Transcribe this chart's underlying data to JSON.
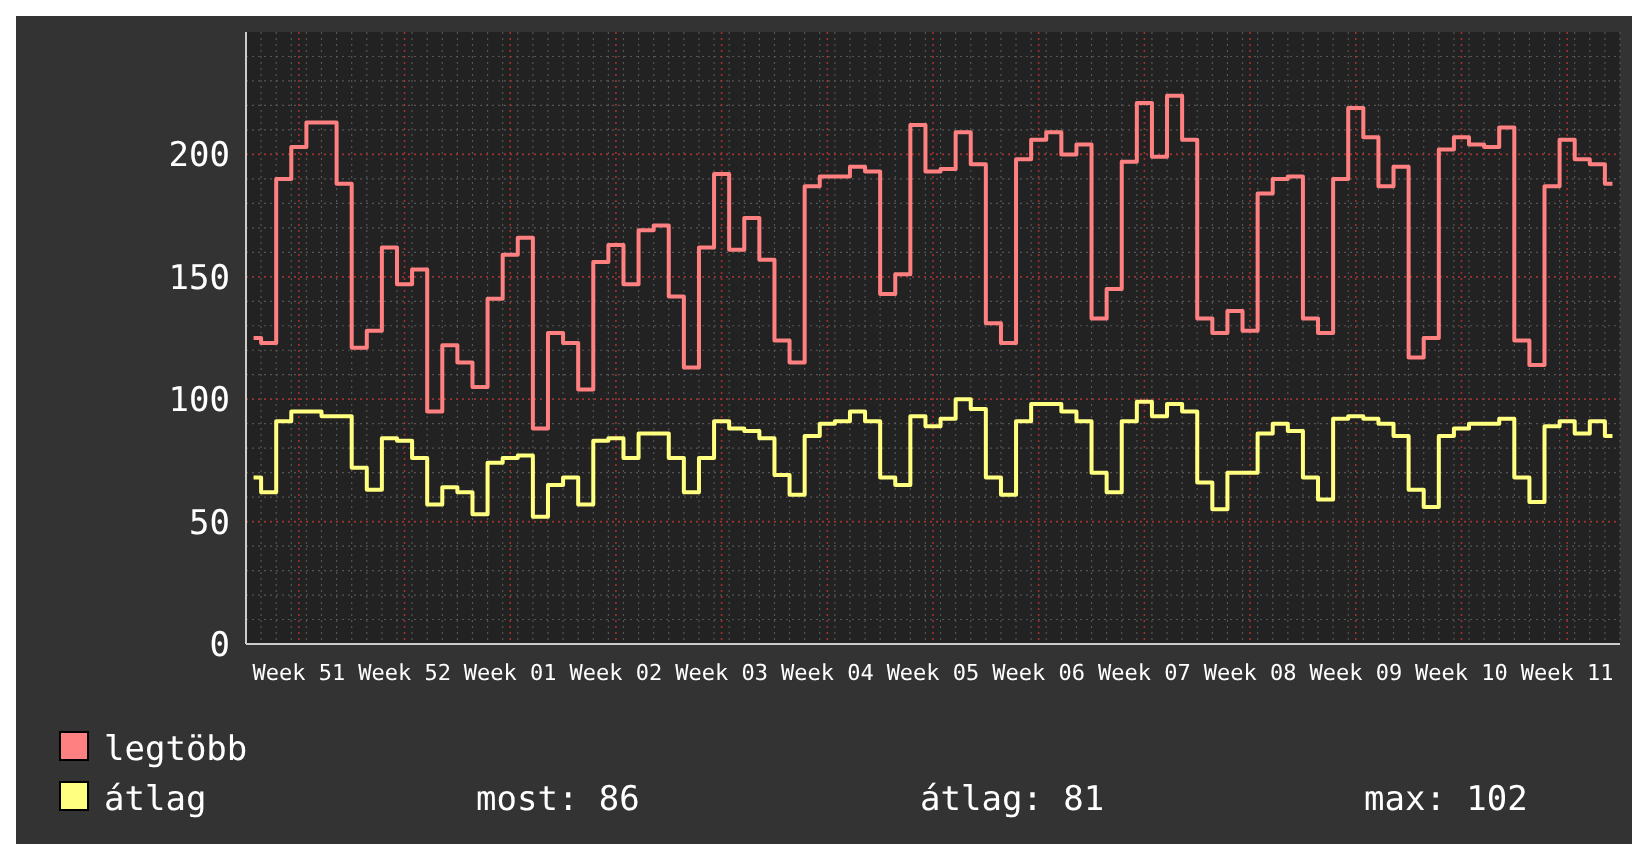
{
  "chart_data": {
    "type": "step",
    "categories": [
      null,
      null,
      null,
      "Week 51",
      null,
      null,
      null,
      null,
      null,
      null,
      "Week 52",
      null,
      null,
      null,
      null,
      null,
      null,
      "Week 01",
      null,
      null,
      null,
      null,
      null,
      null,
      "Week 02",
      null,
      null,
      null,
      null,
      null,
      null,
      "Week 03",
      null,
      null,
      null,
      null,
      null,
      null,
      "Week 04",
      null,
      null,
      null,
      null,
      null,
      null,
      "Week 05",
      null,
      null,
      null,
      null,
      null,
      null,
      "Week 06",
      null,
      null,
      null,
      null,
      null,
      null,
      "Week 07",
      null,
      null,
      null,
      null,
      null,
      null,
      "Week 08",
      null,
      null,
      null,
      null,
      null,
      null,
      "Week 09",
      null,
      null,
      null,
      null,
      null,
      null,
      "Week 10",
      null,
      null,
      null,
      null,
      null,
      null,
      "Week 11",
      null,
      null,
      null
    ],
    "series": [
      {
        "name": "legtöbb",
        "color": "#ff8080",
        "values": [
          125,
          123,
          190,
          203,
          213,
          213,
          188,
          121,
          128,
          162,
          147,
          153,
          95,
          122,
          115,
          105,
          141,
          159,
          166,
          88,
          127,
          123,
          104,
          156,
          163,
          147,
          169,
          171,
          142,
          113,
          162,
          192,
          161,
          174,
          157,
          124,
          115,
          187,
          191,
          191,
          195,
          193,
          143,
          151,
          212,
          193,
          194,
          209,
          196,
          131,
          123,
          198,
          206,
          209,
          200,
          204,
          133,
          145,
          197,
          221,
          199,
          224,
          206,
          133,
          127,
          136,
          128,
          184,
          190,
          191,
          133,
          127,
          190,
          219,
          207,
          187,
          195,
          117,
          125,
          202,
          207,
          204,
          203,
          211,
          124,
          114,
          187,
          206,
          198,
          196,
          188
        ]
      },
      {
        "name": "átlag",
        "color": "#ffff80",
        "values": [
          68,
          62,
          91,
          95,
          95,
          93,
          93,
          72,
          63,
          84,
          83,
          76,
          57,
          64,
          62,
          53,
          74,
          76,
          77,
          52,
          65,
          68,
          57,
          83,
          84,
          76,
          86,
          86,
          76,
          62,
          76,
          91,
          88,
          87,
          84,
          69,
          61,
          85,
          90,
          91,
          95,
          91,
          68,
          65,
          93,
          89,
          92,
          100,
          96,
          68,
          61,
          91,
          98,
          98,
          95,
          91,
          70,
          62,
          91,
          99,
          93,
          98,
          95,
          66,
          55,
          70,
          70,
          86,
          90,
          87,
          68,
          59,
          92,
          93,
          92,
          90,
          85,
          63,
          56,
          85,
          88,
          90,
          90,
          92,
          68,
          58,
          89,
          91,
          86,
          91,
          85
        ]
      }
    ],
    "ylim": [
      0,
      250
    ],
    "yticks": [
      0,
      50,
      100,
      150,
      200
    ],
    "grid": true,
    "legend": "bottom left",
    "annotations": [
      "most: 86",
      "átlag: 81",
      "max: 102"
    ]
  }
}
